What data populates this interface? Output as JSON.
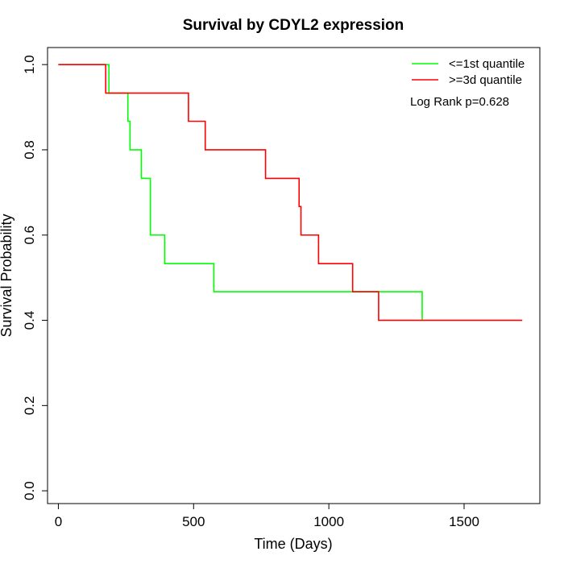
{
  "chart_data": {
    "type": "line",
    "title": "Survival by CDYL2 expression",
    "xlabel": "Time (Days)",
    "ylabel": "Survival Probability",
    "xlim": [
      -40,
      1780
    ],
    "ylim": [
      -0.03,
      1.04
    ],
    "xticks": [
      0,
      500,
      1000,
      1500
    ],
    "xtick_labels": [
      "0",
      "500",
      "1000",
      "1500"
    ],
    "yticks": [
      0.0,
      0.2,
      0.4,
      0.6,
      0.8,
      1.0
    ],
    "ytick_labels": [
      "0.0",
      "0.2",
      "0.4",
      "0.6",
      "0.8",
      "1.0"
    ],
    "grid": false,
    "legend_position": "top-right",
    "annotation": "Log Rank p=0.628",
    "series": [
      {
        "name": "<=1st quantile",
        "color": "#00ff00",
        "step": true,
        "x": [
          0,
          187,
          257,
          265,
          307,
          340,
          393,
          575,
          1345
        ],
        "y": [
          1.0,
          0.933,
          0.867,
          0.8,
          0.733,
          0.6,
          0.533,
          0.467,
          0.4
        ]
      },
      {
        "name": ">=3d quantile",
        "color": "#ff0000",
        "step": true,
        "x": [
          0,
          175,
          481,
          543,
          766,
          890,
          897,
          962,
          1088,
          1184,
          1715
        ],
        "y": [
          1.0,
          0.933,
          0.867,
          0.8,
          0.733,
          0.667,
          0.6,
          0.533,
          0.467,
          0.4,
          0.4
        ]
      }
    ]
  }
}
